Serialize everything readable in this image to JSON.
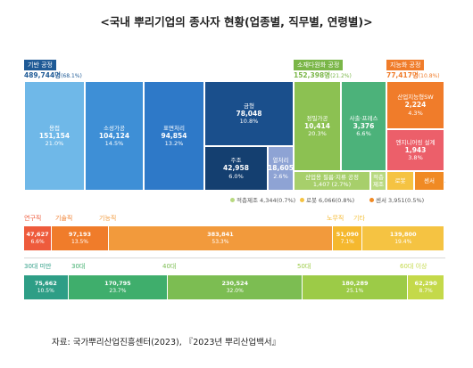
{
  "chart_data": [
    {
      "type": "treemap",
      "title": "<국내 뿌리기업의 종사자 현황(업종별, 직무별, 연령별)>",
      "groups": [
        {
          "name": "기반 공정",
          "total_label": "489,744명",
          "total_pct_label": "(68.1%)",
          "value": 489744,
          "color": "#1e5a96",
          "items": [
            {
              "name": "용접",
              "value": 151154,
              "value_label": "151,154",
              "pct_label": "21.0%",
              "color": "#6fb8e8"
            },
            {
              "name": "소성가공",
              "value": 104124,
              "value_label": "104,124",
              "pct_label": "14.5%",
              "color": "#3e8fd6"
            },
            {
              "name": "표면처리",
              "value": 94854,
              "value_label": "94,854",
              "pct_label": "13.2%",
              "color": "#2e79c8"
            },
            {
              "name": "금형",
              "value": 78048,
              "value_label": "78,048",
              "pct_label": "10.8%",
              "color": "#1a4f8c"
            },
            {
              "name": "주조",
              "value": 42958,
              "value_label": "42,958",
              "pct_label": "6.0%",
              "color": "#143f70"
            },
            {
              "name": "열처리",
              "value": 18605,
              "value_label": "18,605",
              "pct_label": "2.6%",
              "color": "#8ea3d4"
            }
          ]
        },
        {
          "name": "소재다원화 공정",
          "total_label": "152,398명",
          "total_pct_label": "(21.2%)",
          "value": 152398,
          "color": "#7ab648",
          "items": [
            {
              "name": "정밀가공",
              "value": 10414,
              "value_label": "10,414",
              "pct_label": "20.3%",
              "color": "#8cc152"
            },
            {
              "name": "사출·프레스",
              "value": 3376,
              "value_label": "3,376",
              "pct_label": "6.6%",
              "color": "#4cb27a"
            },
            {
              "name": "산업용 필름·지류 공정",
              "value": 1407,
              "value_label": "1,407",
              "pct_label": "(2.7%)",
              "color": "#a7cf6b"
            },
            {
              "name": "적층",
              "sub_name": "제조",
              "value": 4344,
              "color": "#b8d980"
            }
          ],
          "legend": [
            {
              "label": "적층제조 4,344(0.7%)",
              "color": "#b8d980"
            },
            {
              "label": "로봇 6,066(0.8%)",
              "color": "#f5c342"
            },
            {
              "label": "센서 3,951(0.5%)",
              "color": "#f08a24"
            }
          ]
        },
        {
          "name": "지능화 공정",
          "total_label": "77,417명",
          "total_pct_label": "(10.8%)",
          "value": 77417,
          "color": "#f07c2a",
          "items": [
            {
              "name": "산업지능형SW",
              "value": 2224,
              "value_label": "2,224",
              "pct_label": "4.3%",
              "color": "#f07c2a"
            },
            {
              "name": "엔지니어링 설계",
              "value": 1943,
              "value_label": "1,943",
              "pct_label": "3.8%",
              "color": "#ec5f6a"
            },
            {
              "name": "로봇",
              "value": 6066,
              "color": "#f5c342"
            },
            {
              "name": "센서",
              "value": 3951,
              "color": "#f08a24"
            }
          ]
        }
      ]
    },
    {
      "type": "bar",
      "orientation": "horizontal-stacked",
      "categories": [
        "연구직",
        "기술직",
        "기능직",
        "노무직",
        "기타"
      ],
      "values": [
        47627,
        97193,
        383841,
        51090,
        139800
      ],
      "value_labels": [
        "47,627",
        "97,193",
        "383,841",
        "51,090",
        "139,800"
      ],
      "pct_labels": [
        "6.6%",
        "13.5%",
        "53.3%",
        "7.1%",
        "19.4%"
      ],
      "colors": [
        "#ee5b3c",
        "#f07c2a",
        "#f29a3c",
        "#f5b82e",
        "#f5c342"
      ]
    },
    {
      "type": "bar",
      "orientation": "horizontal-stacked",
      "categories": [
        "30대 미만",
        "30대",
        "40대",
        "50대",
        "60대 이상"
      ],
      "values": [
        75662,
        170795,
        230524,
        180289,
        62290
      ],
      "value_labels": [
        "75,662",
        "170,795",
        "230,524",
        "180,289",
        "62,290"
      ],
      "pct_labels": [
        "10.5%",
        "23.7%",
        "32.0%",
        "25.1%",
        "8.7%"
      ],
      "colors": [
        "#2e9e86",
        "#3fae6c",
        "#7cbd52",
        "#9ccb47",
        "#c4d94a"
      ]
    }
  ],
  "source": "자료: 국가뿌리산업진흥센터(2023), 『2023년 뿌리산업백서』"
}
